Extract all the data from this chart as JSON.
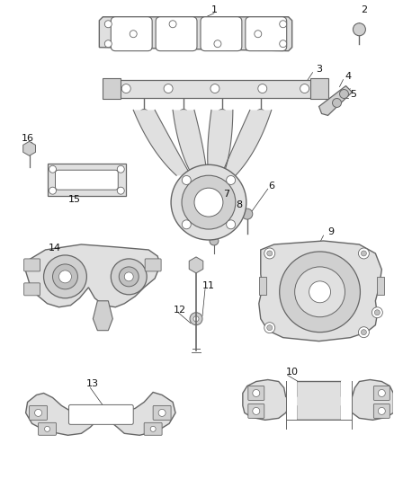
{
  "bg_color": "#ffffff",
  "line_color": "#666666",
  "fill_light": "#e0e0e0",
  "fill_mid": "#d0d0d0",
  "fill_dark": "#c0c0c0",
  "fig_width": 4.38,
  "fig_height": 5.33,
  "dpi": 100
}
